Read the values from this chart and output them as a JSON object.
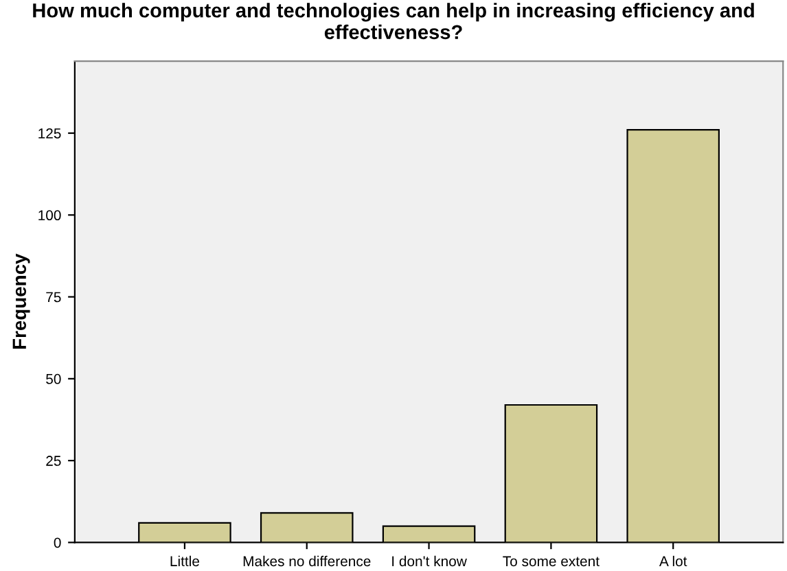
{
  "chart_data": {
    "type": "bar",
    "title": "How much computer and technologies can help in increasing efficiency and effectiveness?",
    "ylabel": "Frequency",
    "categories": [
      "Little",
      "Makes no difference",
      "I don't know",
      "To some extent",
      "A lot"
    ],
    "values": [
      6,
      9,
      5,
      42,
      126
    ],
    "color": "#d3ce97",
    "ylim": [
      0,
      147
    ],
    "yticks": [
      0,
      25,
      50,
      75,
      100,
      125
    ],
    "grid": false
  }
}
